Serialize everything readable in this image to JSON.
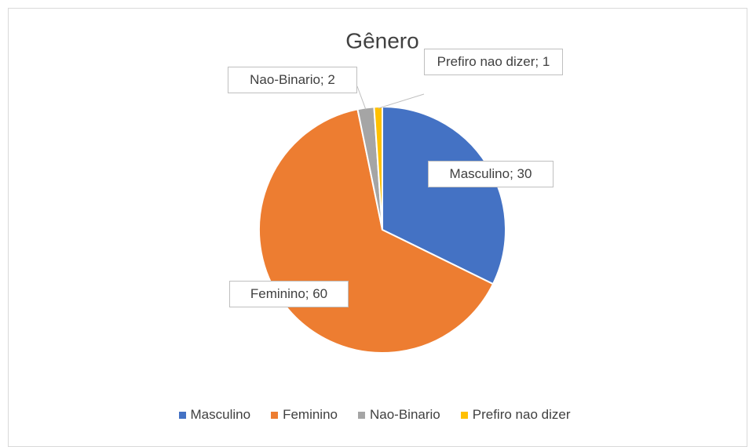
{
  "chart_data": {
    "type": "pie",
    "title": "Gênero",
    "categories": [
      "Masculino",
      "Feminino",
      "Nao-Binario",
      "Prefiro nao dizer"
    ],
    "values": [
      30,
      60,
      2,
      1
    ],
    "value_labels": [
      "Masculino; 30",
      "Feminino; 60",
      "Nao-Binario; 2",
      "Prefiro nao dizer; 1"
    ],
    "colors": [
      "#4472c4",
      "#ed7d31",
      "#a5a5a5",
      "#ffc000"
    ],
    "legend": "bottom"
  }
}
